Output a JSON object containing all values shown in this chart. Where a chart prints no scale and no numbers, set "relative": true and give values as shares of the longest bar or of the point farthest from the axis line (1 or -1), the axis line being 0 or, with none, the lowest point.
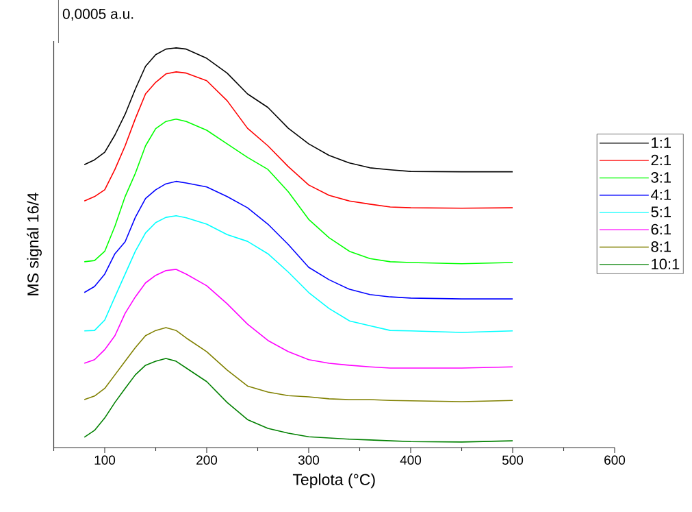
{
  "chart_data": {
    "type": "line",
    "xlabel": "Teplota (°C)",
    "ylabel": "MS signál 16/4",
    "relative": true,
    "legend": "right",
    "annotations": [
      "0,0005 a.u."
    ],
    "xlim": [
      50,
      600
    ],
    "xticks": [
      100,
      200,
      300,
      400,
      500,
      600
    ],
    "x": [
      80,
      90,
      100,
      110,
      120,
      130,
      140,
      150,
      160,
      170,
      180,
      200,
      220,
      240,
      260,
      280,
      300,
      320,
      340,
      360,
      380,
      400,
      450,
      500
    ],
    "series": [
      {
        "name": "1:1",
        "color": "#000000",
        "values": [
          0.708,
          0.72,
          0.739,
          0.782,
          0.834,
          0.897,
          0.954,
          0.983,
          0.997,
          1.0,
          0.997,
          0.974,
          0.937,
          0.885,
          0.851,
          0.799,
          0.76,
          0.731,
          0.712,
          0.7,
          0.695,
          0.691,
          0.69,
          0.69
        ]
      },
      {
        "name": "2:1",
        "color": "#ff0000",
        "values": [
          0.617,
          0.628,
          0.645,
          0.696,
          0.755,
          0.823,
          0.885,
          0.914,
          0.935,
          0.94,
          0.937,
          0.918,
          0.868,
          0.799,
          0.755,
          0.703,
          0.657,
          0.631,
          0.617,
          0.609,
          0.602,
          0.6,
          0.599,
          0.6
        ]
      },
      {
        "name": "3:1",
        "color": "#00ff00",
        "values": [
          0.465,
          0.468,
          0.491,
          0.554,
          0.628,
          0.686,
          0.755,
          0.798,
          0.816,
          0.822,
          0.816,
          0.794,
          0.76,
          0.726,
          0.696,
          0.64,
          0.571,
          0.525,
          0.491,
          0.473,
          0.465,
          0.463,
          0.46,
          0.463
        ]
      },
      {
        "name": "4:1",
        "color": "#0000ff",
        "values": [
          0.388,
          0.403,
          0.434,
          0.485,
          0.515,
          0.576,
          0.623,
          0.645,
          0.66,
          0.666,
          0.662,
          0.652,
          0.628,
          0.6,
          0.559,
          0.508,
          0.451,
          0.42,
          0.396,
          0.383,
          0.377,
          0.374,
          0.372,
          0.372
        ]
      },
      {
        "name": "5:1",
        "color": "#00ffff",
        "values": [
          0.292,
          0.293,
          0.319,
          0.377,
          0.434,
          0.491,
          0.537,
          0.563,
          0.576,
          0.58,
          0.575,
          0.559,
          0.533,
          0.516,
          0.485,
          0.439,
          0.388,
          0.348,
          0.317,
          0.305,
          0.293,
          0.292,
          0.288,
          0.292
        ]
      },
      {
        "name": "6:1",
        "color": "#ff00ff",
        "values": [
          0.211,
          0.22,
          0.245,
          0.28,
          0.336,
          0.377,
          0.412,
          0.431,
          0.443,
          0.446,
          0.434,
          0.405,
          0.36,
          0.309,
          0.268,
          0.24,
          0.22,
          0.211,
          0.206,
          0.202,
          0.199,
          0.199,
          0.199,
          0.202
        ]
      },
      {
        "name": "8:1",
        "color": "#808000",
        "values": [
          0.12,
          0.129,
          0.148,
          0.182,
          0.216,
          0.25,
          0.28,
          0.293,
          0.3,
          0.293,
          0.274,
          0.24,
          0.194,
          0.154,
          0.139,
          0.13,
          0.127,
          0.122,
          0.12,
          0.12,
          0.118,
          0.117,
          0.115,
          0.118
        ]
      },
      {
        "name": "10:1",
        "color": "#008000",
        "values": [
          0.026,
          0.043,
          0.074,
          0.113,
          0.148,
          0.182,
          0.206,
          0.216,
          0.223,
          0.216,
          0.199,
          0.165,
          0.113,
          0.07,
          0.048,
          0.036,
          0.027,
          0.024,
          0.021,
          0.019,
          0.017,
          0.015,
          0.014,
          0.017
        ]
      }
    ]
  }
}
